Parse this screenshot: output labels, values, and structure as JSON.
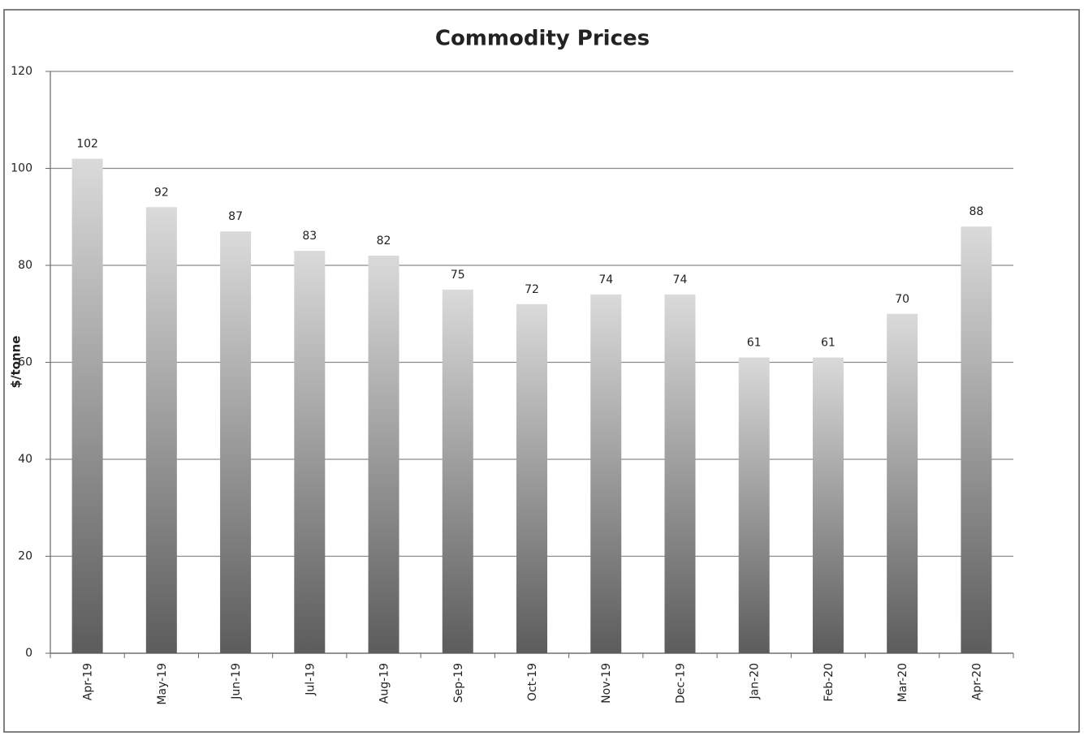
{
  "chart_data": {
    "type": "bar",
    "title": "Commodity Prices",
    "y_label": "$/tonne",
    "categories": [
      "Apr-19",
      "May-19",
      "Jun-19",
      "Jul-19",
      "Aug-19",
      "Sep-19",
      "Oct-19",
      "Nov-19",
      "Dec-19",
      "Jan-20",
      "Feb-20",
      "Mar-20",
      "Apr-20"
    ],
    "values": [
      102,
      92,
      87,
      83,
      82,
      75,
      72,
      74,
      74,
      61,
      61,
      70,
      88
    ],
    "color_gradient": [
      "#dadada",
      "#5c5c5c"
    ],
    "ylim": [
      0,
      120
    ],
    "yticks": [
      0,
      20,
      40,
      60,
      80,
      100,
      120
    ],
    "grid": true,
    "data_labels": true
  }
}
